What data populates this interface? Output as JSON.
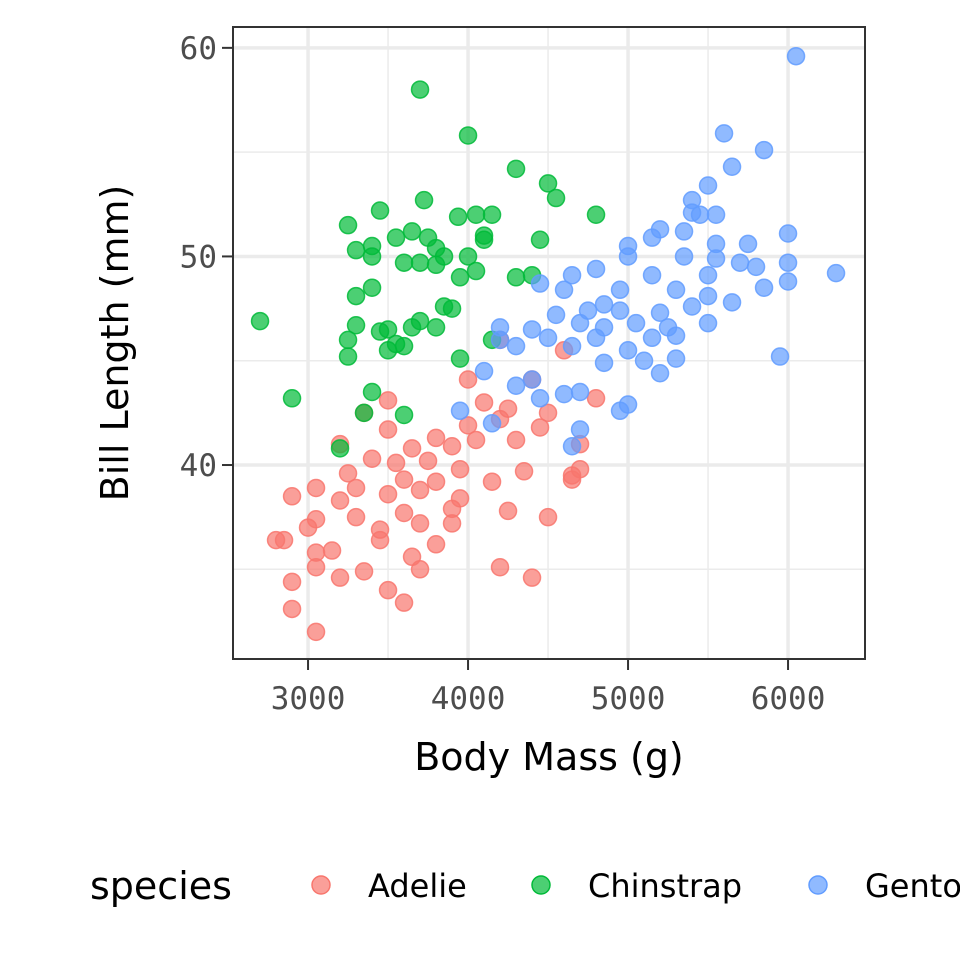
{
  "chart_data": {
    "type": "scatter",
    "title": "",
    "xlabel": "Body Mass (g)",
    "ylabel": "Bill Length (mm)",
    "xlim": [
      2531,
      6481
    ],
    "ylim": [
      30.7,
      61.0
    ],
    "xticks": [
      "3000",
      "4000",
      "5000",
      "6000"
    ],
    "xtick_values": [
      3000,
      4000,
      5000,
      6000
    ],
    "yticks": [
      "40",
      "50",
      "60"
    ],
    "ytick_values": [
      40,
      50,
      60
    ],
    "grid": true,
    "legend": {
      "title": "species",
      "position": "bottom"
    },
    "series": [
      {
        "name": "Adelie",
        "color": "#F8766D",
        "points": [
          [
            3050,
            32.0
          ],
          [
            2900,
            33.1
          ],
          [
            2900,
            34.4
          ],
          [
            3500,
            34.0
          ],
          [
            3600,
            33.4
          ],
          [
            3200,
            34.6
          ],
          [
            4400,
            34.6
          ],
          [
            4200,
            35.1
          ],
          [
            3050,
            35.1
          ],
          [
            3350,
            34.9
          ],
          [
            3700,
            35.0
          ],
          [
            2850,
            36.4
          ],
          [
            3150,
            35.9
          ],
          [
            3450,
            36.4
          ],
          [
            3650,
            35.6
          ],
          [
            3800,
            36.2
          ],
          [
            3050,
            37.4
          ],
          [
            3300,
            37.5
          ],
          [
            3600,
            37.7
          ],
          [
            3900,
            37.2
          ],
          [
            4250,
            37.8
          ],
          [
            4500,
            37.5
          ],
          [
            2900,
            38.5
          ],
          [
            3200,
            38.3
          ],
          [
            3500,
            38.6
          ],
          [
            3700,
            38.8
          ],
          [
            3950,
            38.4
          ],
          [
            3050,
            38.9
          ],
          [
            3250,
            39.6
          ],
          [
            3600,
            39.3
          ],
          [
            3800,
            39.2
          ],
          [
            4150,
            39.2
          ],
          [
            4350,
            39.7
          ],
          [
            4650,
            39.5
          ],
          [
            3200,
            41.0
          ],
          [
            3400,
            40.3
          ],
          [
            3650,
            40.8
          ],
          [
            3900,
            40.9
          ],
          [
            4050,
            41.2
          ],
          [
            4300,
            41.2
          ],
          [
            4700,
            41.0
          ],
          [
            3500,
            41.7
          ],
          [
            3800,
            41.3
          ],
          [
            4000,
            41.9
          ],
          [
            4200,
            42.2
          ],
          [
            4450,
            41.8
          ],
          [
            3350,
            42.5
          ],
          [
            3500,
            43.1
          ],
          [
            4100,
            43.0
          ],
          [
            4250,
            42.7
          ],
          [
            4500,
            42.5
          ],
          [
            4800,
            43.2
          ],
          [
            4000,
            44.1
          ],
          [
            4400,
            44.1
          ],
          [
            4200,
            46.0
          ],
          [
            4600,
            45.5
          ],
          [
            3750,
            40.2
          ],
          [
            3450,
            36.9
          ],
          [
            3050,
            35.8
          ],
          [
            2800,
            36.4
          ],
          [
            3300,
            38.9
          ],
          [
            3550,
            40.1
          ],
          [
            3950,
            39.8
          ],
          [
            3900,
            37.9
          ],
          [
            3700,
            37.2
          ],
          [
            4650,
            39.3
          ],
          [
            4700,
            39.8
          ],
          [
            3000,
            37.0
          ]
        ]
      },
      {
        "name": "Chinstrap",
        "color": "#00BA38",
        "points": [
          [
            2700,
            46.9
          ],
          [
            2900,
            43.2
          ],
          [
            3700,
            58.0
          ],
          [
            4000,
            55.8
          ],
          [
            4300,
            54.2
          ],
          [
            4500,
            53.5
          ],
          [
            4550,
            52.8
          ],
          [
            4800,
            52.0
          ],
          [
            3250,
            51.5
          ],
          [
            3450,
            52.2
          ],
          [
            3725,
            52.7
          ],
          [
            3938,
            51.9
          ],
          [
            4050,
            52.0
          ],
          [
            4150,
            52.0
          ],
          [
            4100,
            50.8
          ],
          [
            4450,
            50.8
          ],
          [
            4300,
            49.0
          ],
          [
            4400,
            49.1
          ],
          [
            4050,
            49.3
          ],
          [
            3950,
            49.0
          ],
          [
            3300,
            50.3
          ],
          [
            3400,
            50.5
          ],
          [
            3400,
            50.0
          ],
          [
            3550,
            50.9
          ],
          [
            3650,
            51.2
          ],
          [
            3750,
            50.9
          ],
          [
            3800,
            50.4
          ],
          [
            3800,
            49.6
          ],
          [
            3600,
            49.7
          ],
          [
            3700,
            49.7
          ],
          [
            3300,
            48.1
          ],
          [
            3400,
            48.5
          ],
          [
            3850,
            47.6
          ],
          [
            3900,
            47.5
          ],
          [
            3300,
            46.7
          ],
          [
            3700,
            46.9
          ],
          [
            3800,
            46.6
          ],
          [
            3650,
            46.6
          ],
          [
            3450,
            46.4
          ],
          [
            3500,
            46.5
          ],
          [
            3250,
            46.0
          ],
          [
            3250,
            45.2
          ],
          [
            3550,
            45.8
          ],
          [
            3600,
            45.7
          ],
          [
            3500,
            45.5
          ],
          [
            3950,
            45.1
          ],
          [
            4150,
            46.0
          ],
          [
            3400,
            43.5
          ],
          [
            3350,
            42.5
          ],
          [
            3600,
            42.4
          ],
          [
            3200,
            40.8
          ],
          [
            4100,
            51.0
          ],
          [
            4000,
            50.0
          ],
          [
            3850,
            50.0
          ]
        ]
      },
      {
        "name": "Gentoo",
        "color": "#619CFF",
        "points": [
          [
            6050,
            59.6
          ],
          [
            5600,
            55.9
          ],
          [
            5850,
            55.1
          ],
          [
            5650,
            54.3
          ],
          [
            5500,
            53.4
          ],
          [
            5400,
            52.7
          ],
          [
            5450,
            52.0
          ],
          [
            5550,
            52.0
          ],
          [
            5400,
            52.1
          ],
          [
            5200,
            51.3
          ],
          [
            5150,
            50.9
          ],
          [
            5350,
            51.2
          ],
          [
            5550,
            50.6
          ],
          [
            5750,
            50.6
          ],
          [
            6000,
            51.1
          ],
          [
            5000,
            50.5
          ],
          [
            5000,
            50.0
          ],
          [
            5350,
            50.0
          ],
          [
            5550,
            49.9
          ],
          [
            5700,
            49.7
          ],
          [
            5800,
            49.5
          ],
          [
            6000,
            49.7
          ],
          [
            6300,
            49.2
          ],
          [
            5150,
            49.1
          ],
          [
            5500,
            49.1
          ],
          [
            4800,
            49.4
          ],
          [
            4650,
            49.1
          ],
          [
            4450,
            48.7
          ],
          [
            4600,
            48.4
          ],
          [
            4950,
            48.4
          ],
          [
            5300,
            48.4
          ],
          [
            5850,
            48.5
          ],
          [
            6000,
            48.8
          ],
          [
            5500,
            48.1
          ],
          [
            4850,
            47.7
          ],
          [
            4750,
            47.4
          ],
          [
            4950,
            47.4
          ],
          [
            5200,
            47.3
          ],
          [
            5400,
            47.6
          ],
          [
            5650,
            47.8
          ],
          [
            5500,
            46.8
          ],
          [
            4550,
            47.2
          ],
          [
            4700,
            46.8
          ],
          [
            4850,
            46.6
          ],
          [
            5050,
            46.8
          ],
          [
            5250,
            46.6
          ],
          [
            4400,
            46.5
          ],
          [
            4500,
            46.1
          ],
          [
            4800,
            46.1
          ],
          [
            5150,
            46.1
          ],
          [
            5300,
            46.2
          ],
          [
            4200,
            46.0
          ],
          [
            4300,
            45.7
          ],
          [
            4650,
            45.7
          ],
          [
            5000,
            45.5
          ],
          [
            5100,
            45.0
          ],
          [
            5300,
            45.1
          ],
          [
            5950,
            45.2
          ],
          [
            4850,
            44.9
          ],
          [
            5200,
            44.4
          ],
          [
            4100,
            44.5
          ],
          [
            4300,
            43.8
          ],
          [
            4400,
            44.1
          ],
          [
            4600,
            43.4
          ],
          [
            4700,
            43.5
          ],
          [
            4450,
            43.2
          ],
          [
            4950,
            42.6
          ],
          [
            5000,
            42.9
          ],
          [
            3950,
            42.6
          ],
          [
            4150,
            42.0
          ],
          [
            4700,
            41.7
          ],
          [
            4650,
            40.9
          ],
          [
            4200,
            46.6
          ]
        ]
      }
    ]
  }
}
